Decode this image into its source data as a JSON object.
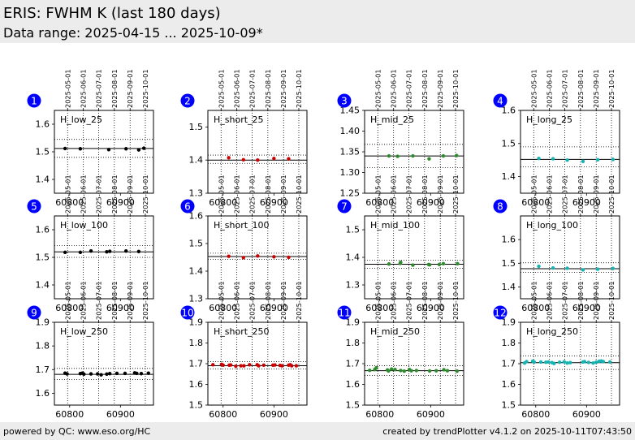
{
  "header": {
    "title": "ERIS: FWHM K (last 180 days)",
    "subtitle": "Data range: 2025-04-15 ... 2025-10-09*"
  },
  "footer": {
    "left": "powered by QC: www.eso.org/HC",
    "right": "created by trendPlotter v4.1.2 on 2025-10-11T07:43:50"
  },
  "date_ticks": [
    {
      "label": "2025-05-01",
      "mjd": 60796
    },
    {
      "label": "2025-06-01",
      "mjd": 60827
    },
    {
      "label": "2025-07-01",
      "mjd": 60857
    },
    {
      "label": "2025-08-01",
      "mjd": 60888
    },
    {
      "label": "2025-09-01",
      "mjd": 60919
    },
    {
      "label": "2025-10-01",
      "mjd": 60949
    }
  ],
  "chart_data": [
    {
      "type": "scatter",
      "number": "1",
      "label": "H_low_25",
      "color": "#000000",
      "xlim": [
        60770,
        60965
      ],
      "ylim": [
        1.35,
        1.65
      ],
      "yticks": [
        "1.4",
        "1.5",
        "1.6"
      ],
      "xticks": [
        "60800",
        "60900"
      ],
      "ref": 1.512,
      "band": [
        1.48,
        1.545
      ],
      "points": [
        [
          60791,
          1.512
        ],
        [
          60821,
          1.511
        ],
        [
          60877,
          1.508
        ],
        [
          60911,
          1.511
        ],
        [
          60936,
          1.507
        ],
        [
          60946,
          1.513
        ]
      ]
    },
    {
      "type": "scatter",
      "number": "2",
      "label": "H_short_25",
      "color": "#cc0000",
      "xlim": [
        60770,
        60965
      ],
      "ylim": [
        1.3,
        1.55
      ],
      "yticks": [
        "1.3",
        "1.4",
        "1.5"
      ],
      "xticks": [
        "60800",
        "60900"
      ],
      "ref": 1.4,
      "band": [
        1.39,
        1.415
      ],
      "points": [
        [
          60811,
          1.407
        ],
        [
          60840,
          1.401
        ],
        [
          60868,
          1.4
        ],
        [
          60900,
          1.405
        ],
        [
          60929,
          1.404
        ]
      ]
    },
    {
      "type": "scatter",
      "number": "3",
      "label": "H_mid_25",
      "color": "#2e8b2e",
      "xlim": [
        60770,
        60965
      ],
      "ylim": [
        1.25,
        1.45
      ],
      "yticks": [
        "1.25",
        "1.30",
        "1.35",
        "1.40",
        "1.45"
      ],
      "xticks": [
        "60800",
        "60900"
      ],
      "ref": 1.34,
      "band": [
        1.312,
        1.368
      ],
      "points": [
        [
          60818,
          1.34
        ],
        [
          60835,
          1.339
        ],
        [
          60865,
          1.34
        ],
        [
          60897,
          1.333
        ],
        [
          60925,
          1.34
        ],
        [
          60951,
          1.341
        ]
      ]
    },
    {
      "type": "scatter",
      "number": "4",
      "label": "H_long_25",
      "color": "#17b3b3",
      "xlim": [
        60770,
        60965
      ],
      "ylim": [
        1.35,
        1.6
      ],
      "yticks": [
        "1.4",
        "1.5",
        "1.6"
      ],
      "xticks": [
        "60800",
        "60900"
      ],
      "ref": 1.452,
      "band": [
        1.43,
        1.49
      ],
      "points": [
        [
          60806,
          1.455
        ],
        [
          60834,
          1.454
        ],
        [
          60862,
          1.45
        ],
        [
          60893,
          1.446
        ],
        [
          60922,
          1.451
        ],
        [
          60952,
          1.452
        ]
      ]
    },
    {
      "type": "scatter",
      "number": "5",
      "label": "H_low_100",
      "color": "#000000",
      "xlim": [
        60770,
        60965
      ],
      "ylim": [
        1.35,
        1.65
      ],
      "yticks": [
        "1.4",
        "1.5",
        "1.6"
      ],
      "xticks": [
        "60800",
        "60900"
      ],
      "ref": 1.52,
      "band": [
        1.5,
        1.543
      ],
      "points": [
        [
          60791,
          1.518
        ],
        [
          60821,
          1.518
        ],
        [
          60842,
          1.523
        ],
        [
          60873,
          1.52
        ],
        [
          60879,
          1.522
        ],
        [
          60911,
          1.523
        ],
        [
          60936,
          1.521
        ]
      ]
    },
    {
      "type": "scatter",
      "number": "6",
      "label": "H_short_100",
      "color": "#cc0000",
      "xlim": [
        60770,
        60965
      ],
      "ylim": [
        1.3,
        1.6
      ],
      "yticks": [
        "1.3",
        "1.4",
        "1.5",
        "1.6"
      ],
      "xticks": [
        "60800",
        "60900"
      ],
      "ref": 1.453,
      "band": [
        1.443,
        1.465
      ],
      "points": [
        [
          60811,
          1.454
        ],
        [
          60840,
          1.449
        ],
        [
          60868,
          1.455
        ],
        [
          60900,
          1.452
        ],
        [
          60929,
          1.45
        ]
      ]
    },
    {
      "type": "scatter",
      "number": "7",
      "label": "H_mid_100",
      "color": "#2e8b2e",
      "xlim": [
        60770,
        60965
      ],
      "ylim": [
        1.25,
        1.55
      ],
      "yticks": [
        "1.3",
        "1.4",
        "1.5"
      ],
      "xticks": [
        "60800",
        "60900"
      ],
      "ref": 1.375,
      "band": [
        1.36,
        1.39
      ],
      "points": [
        [
          60818,
          1.376
        ],
        [
          60840,
          1.378
        ],
        [
          60841,
          1.382
        ],
        [
          60865,
          1.372
        ],
        [
          60896,
          1.374
        ],
        [
          60898,
          1.373
        ],
        [
          60917,
          1.374
        ],
        [
          60925,
          1.377
        ],
        [
          60953,
          1.377
        ]
      ]
    },
    {
      "type": "scatter",
      "number": "8",
      "label": "H_long_100",
      "color": "#17b3b3",
      "xlim": [
        60770,
        60965
      ],
      "ylim": [
        1.35,
        1.7
      ],
      "yticks": [
        "1.4",
        "1.5",
        "1.6"
      ],
      "xticks": [
        "60800",
        "60900"
      ],
      "ref": 1.477,
      "band": [
        1.462,
        1.502
      ],
      "points": [
        [
          60806,
          1.487
        ],
        [
          60834,
          1.48
        ],
        [
          60862,
          1.479
        ],
        [
          60893,
          1.472
        ],
        [
          60922,
          1.475
        ],
        [
          60952,
          1.478
        ]
      ]
    },
    {
      "type": "scatter",
      "number": "9",
      "label": "H_low_250",
      "color": "#000000",
      "xlim": [
        60770,
        60965
      ],
      "ylim": [
        1.55,
        1.9
      ],
      "yticks": [
        "1.6",
        "1.7",
        "1.8",
        "1.9"
      ],
      "xticks": [
        "60800",
        "60900"
      ],
      "ref": 1.68,
      "band": [
        1.658,
        1.705
      ],
      "points": [
        [
          60791,
          1.685
        ],
        [
          60795,
          1.682
        ],
        [
          60821,
          1.683
        ],
        [
          60825,
          1.685
        ],
        [
          60828,
          1.681
        ],
        [
          60842,
          1.682
        ],
        [
          60855,
          1.682
        ],
        [
          60862,
          1.678
        ],
        [
          60873,
          1.681
        ],
        [
          60879,
          1.683
        ],
        [
          60893,
          1.684
        ],
        [
          60909,
          1.684
        ],
        [
          60928,
          1.686
        ],
        [
          60932,
          1.684
        ],
        [
          60941,
          1.683
        ],
        [
          60955,
          1.685
        ]
      ]
    },
    {
      "type": "scatter",
      "number": "10",
      "label": "H_short_250",
      "color": "#cc0000",
      "xlim": [
        60770,
        60965
      ],
      "ylim": [
        1.5,
        1.9
      ],
      "yticks": [
        "1.5",
        "1.6",
        "1.7",
        "1.8",
        "1.9"
      ],
      "xticks": [
        "60800",
        "60900"
      ],
      "ref": 1.69,
      "band": [
        1.675,
        1.71
      ],
      "points": [
        [
          60780,
          1.695
        ],
        [
          60797,
          1.697
        ],
        [
          60800,
          1.693
        ],
        [
          60812,
          1.693
        ],
        [
          60815,
          1.694
        ],
        [
          60825,
          1.688
        ],
        [
          60835,
          1.69
        ],
        [
          60841,
          1.69
        ],
        [
          60852,
          1.695
        ],
        [
          60867,
          1.695
        ],
        [
          60870,
          1.69
        ],
        [
          60880,
          1.693
        ],
        [
          60898,
          1.693
        ],
        [
          60902,
          1.694
        ],
        [
          60912,
          1.692
        ],
        [
          60916,
          1.69
        ],
        [
          60929,
          1.693
        ],
        [
          60932,
          1.695
        ],
        [
          60935,
          1.69
        ],
        [
          60944,
          1.69
        ]
      ]
    },
    {
      "type": "scatter",
      "number": "11",
      "label": "H_mid_250",
      "color": "#2e8b2e",
      "xlim": [
        60770,
        60965
      ],
      "ylim": [
        1.5,
        1.9
      ],
      "yticks": [
        "1.5",
        "1.6",
        "1.7",
        "1.8",
        "1.9"
      ],
      "xticks": [
        "60800",
        "60900"
      ],
      "ref": 1.666,
      "band": [
        1.643,
        1.69
      ],
      "points": [
        [
          60780,
          1.668
        ],
        [
          60790,
          1.672
        ],
        [
          60793,
          1.68
        ],
        [
          60815,
          1.67
        ],
        [
          60817,
          1.665
        ],
        [
          60823,
          1.674
        ],
        [
          60830,
          1.672
        ],
        [
          60841,
          1.667
        ],
        [
          60848,
          1.664
        ],
        [
          60858,
          1.672
        ],
        [
          60862,
          1.666
        ],
        [
          60872,
          1.667
        ],
        [
          60898,
          1.665
        ],
        [
          60911,
          1.666
        ],
        [
          60926,
          1.671
        ],
        [
          60933,
          1.666
        ],
        [
          60952,
          1.664
        ]
      ]
    },
    {
      "type": "scatter",
      "number": "12",
      "label": "H_long_250",
      "color": "#17b3b3",
      "xlim": [
        60770,
        60965
      ],
      "ylim": [
        1.5,
        1.9
      ],
      "yticks": [
        "1.5",
        "1.6",
        "1.7",
        "1.8",
        "1.9"
      ],
      "xticks": [
        "60800",
        "60900"
      ],
      "ref": 1.705,
      "band": [
        1.672,
        1.738
      ],
      "points": [
        [
          60778,
          1.703
        ],
        [
          60782,
          1.71
        ],
        [
          60794,
          1.712
        ],
        [
          60797,
          1.708
        ],
        [
          60810,
          1.708
        ],
        [
          60820,
          1.707
        ],
        [
          60825,
          1.708
        ],
        [
          60832,
          1.705
        ],
        [
          60836,
          1.701
        ],
        [
          60847,
          1.707
        ],
        [
          60856,
          1.709
        ],
        [
          60862,
          1.703
        ],
        [
          60868,
          1.705
        ],
        [
          60893,
          1.708
        ],
        [
          60896,
          1.71
        ],
        [
          60904,
          1.706
        ],
        [
          60913,
          1.703
        ],
        [
          60919,
          1.707
        ],
        [
          60925,
          1.712
        ],
        [
          60929,
          1.713
        ],
        [
          60933,
          1.71
        ],
        [
          60946,
          1.708
        ]
      ]
    }
  ]
}
